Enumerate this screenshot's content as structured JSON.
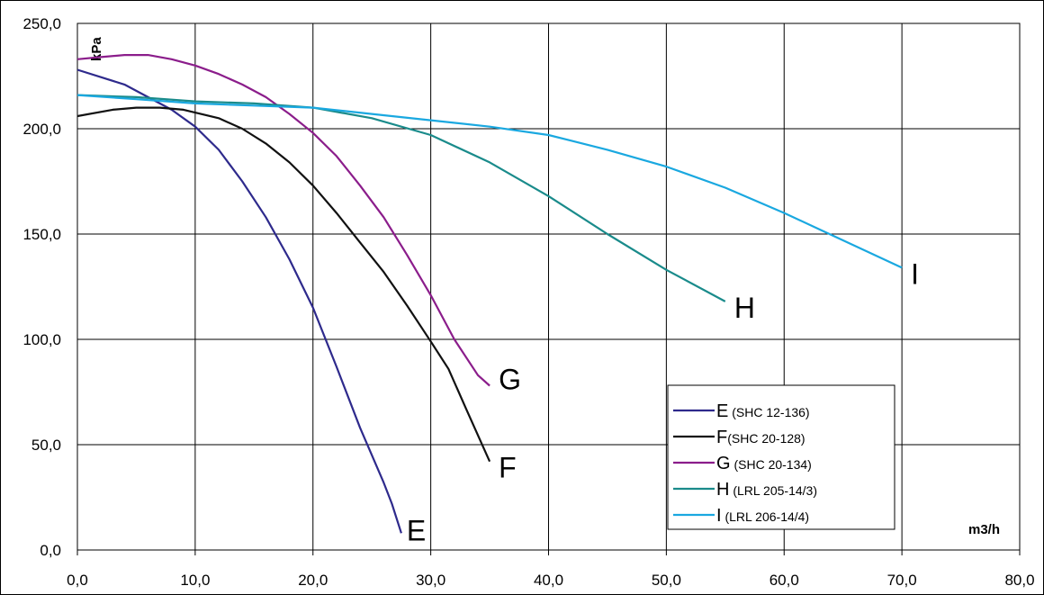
{
  "chart_data": {
    "type": "line",
    "xlabel": "m3/h",
    "ylabel": "kPa",
    "xlim": [
      0,
      80
    ],
    "ylim": [
      0,
      250
    ],
    "x_ticks": [
      "0,0",
      "10,0",
      "20,0",
      "30,0",
      "40,0",
      "50,0",
      "60,0",
      "70,0",
      "80,0"
    ],
    "y_ticks": [
      "0,0",
      "50,0",
      "100,0",
      "150,0",
      "200,0",
      "250,0"
    ],
    "grid": true,
    "legend_position": "bottom-right",
    "series": [
      {
        "letter": "E",
        "model": " (SHC 12-136)",
        "color": "#2E2A8C",
        "x": [
          0,
          4,
          8,
          10,
          12,
          14,
          16,
          18,
          20,
          22,
          24,
          25,
          26,
          26.7,
          27.5
        ],
        "y": [
          228,
          221,
          209,
          201,
          190,
          175,
          158,
          138,
          115,
          87,
          58,
          45,
          32,
          22,
          8
        ]
      },
      {
        "letter": "F",
        "model": "(SHC 20-128)",
        "color": "#111111",
        "x": [
          0,
          3,
          5,
          7,
          9,
          12,
          14,
          16,
          18,
          20,
          22,
          24,
          26,
          28,
          30,
          31.5,
          33,
          35
        ],
        "y": [
          206,
          209,
          210,
          210,
          209,
          205,
          200,
          193,
          184,
          173,
          160,
          146,
          132,
          116,
          99,
          86,
          67,
          42
        ]
      },
      {
        "letter": "G",
        "model": " (SHC 20-134)",
        "color": "#8B1D8B",
        "x": [
          0,
          2,
          4,
          6,
          8,
          10,
          12,
          14,
          16,
          18,
          20,
          22,
          24,
          26,
          28,
          30,
          32,
          34,
          35
        ],
        "y": [
          233,
          234,
          235,
          235,
          233,
          230,
          226,
          221,
          215,
          207,
          198,
          187,
          173,
          158,
          140,
          121,
          100,
          83,
          78
        ]
      },
      {
        "letter": "H",
        "model": " (LRL 205-14/3)",
        "color": "#1A8B8B",
        "x": [
          0,
          5,
          10,
          15,
          20,
          25,
          30,
          35,
          40,
          45,
          50,
          55
        ],
        "y": [
          216,
          215,
          213,
          212,
          210,
          205,
          197,
          184,
          168,
          150,
          133,
          118
        ]
      },
      {
        "letter": "I",
        "model": " (LRL 206-14/4)",
        "color": "#1AA8E0",
        "x": [
          0,
          5,
          10,
          15,
          20,
          25,
          30,
          35,
          40,
          45,
          50,
          55,
          60,
          65,
          70
        ],
        "y": [
          216,
          214,
          212,
          211,
          210,
          207,
          204,
          201,
          197,
          190,
          182,
          172,
          160,
          147,
          134
        ]
      }
    ]
  }
}
